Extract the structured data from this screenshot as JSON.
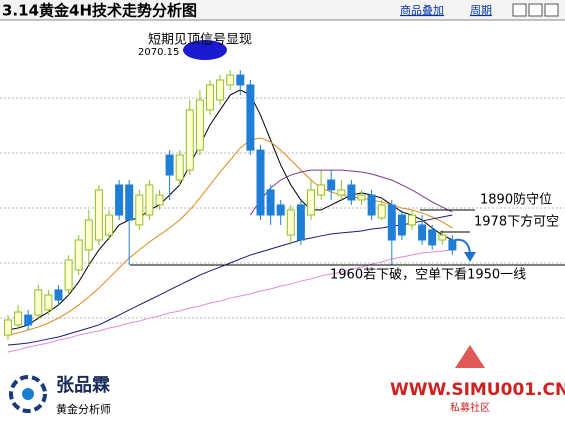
{
  "header": {
    "title": "3.14黄金4H技术走势分析图",
    "buttons": [
      "商品叠加",
      "周期"
    ]
  },
  "chart_data": {
    "type": "candlestick",
    "ylim": [
      1906.3,
      2098.4
    ],
    "up_color": "#8fbf2a",
    "up_fill": "#ffffd0",
    "down_color": "#1f7fd6",
    "open": [
      1920.4,
      1926.1,
      1931.7,
      1931.7,
      1934.6,
      1945.9,
      1945.9,
      1957.2,
      1968.5,
      1974.1,
      1976.9,
      2005.2,
      2005.2,
      1982.6,
      1988.2,
      1993.9,
      2022.1,
      2008.0,
      2013.6,
      2024.9,
      2047.6,
      2053.2,
      2061.7,
      2067.3,
      2061.7,
      2024.9,
      2002.4,
      1993.9,
      1976.9,
      1993.9,
      1988.2,
      1999.5,
      2008.0,
      1999.5,
      2005.2,
      1996.7,
      1999.5,
      1986.5,
      1993.9,
      1988.2,
      1982.6,
      1982.6,
      1979.8,
      1974.1,
      1974.1
    ],
    "high": [
      1931.7,
      1937.4,
      1934.6,
      1948.7,
      1945.9,
      1948.7,
      1965.6,
      1976.9,
      1991.1,
      2005.2,
      1991.1,
      2008.0,
      2008.0,
      2002.4,
      2008.0,
      2002.4,
      2024.9,
      2024.9,
      2053.2,
      2058.9,
      2064.5,
      2067.3,
      2070.15,
      2070.1,
      2064.5,
      2027.8,
      2005.2,
      1996.7,
      1993.9,
      1996.7,
      2008.0,
      2013.6,
      2013.6,
      2008.0,
      2008.0,
      2002.4,
      2002.4,
      1996.7,
      1996.7,
      1991.1,
      1991.1,
      1988.2,
      1982.6,
      1979.8,
      1976.9
    ],
    "low": [
      1917.6,
      1923.3,
      1923.3,
      1928.9,
      1931.7,
      1937.4,
      1943.0,
      1954.3,
      1960.0,
      1971.3,
      1974.1,
      1985.4,
      1960.0,
      1979.8,
      1985.4,
      1991.1,
      1996.7,
      2005.2,
      2010.8,
      2022.1,
      2044.7,
      2050.4,
      2058.9,
      2056.0,
      2022.1,
      1985.4,
      1982.6,
      1982.6,
      1971.3,
      1971.3,
      1985.4,
      1996.7,
      1996.7,
      1996.7,
      1993.9,
      1993.9,
      1985.4,
      1985.4,
      1960.0,
      1974.1,
      1979.8,
      1971.3,
      1968.5,
      1971.3,
      1965.6
    ],
    "close": [
      1928.9,
      1933.4,
      1926.1,
      1945.9,
      1943.0,
      1940.2,
      1962.8,
      1974.1,
      1985.4,
      2002.4,
      1988.2,
      1988.2,
      1985.4,
      1999.5,
      2005.2,
      1999.5,
      2010.8,
      2022.1,
      2047.6,
      2053.2,
      2061.7,
      2064.5,
      2067.3,
      2061.7,
      2024.9,
      1988.2,
      1988.2,
      1988.2,
      1991.1,
      1974.1,
      2002.4,
      2005.2,
      2002.4,
      2002.4,
      1996.7,
      1999.5,
      1988.2,
      1993.9,
      1974.1,
      1976.9,
      1988.2,
      1974.1,
      1971.3,
      1976.9,
      1968.5
    ],
    "series": [
      {
        "color": "#000000",
        "values": [
          1923.3,
          1924.4,
          1926.1,
          1930.0,
          1933.4,
          1937.4,
          1943.0,
          1950.4,
          1960.0,
          1968.5,
          1975.2,
          1982.6,
          1985.4,
          1986.5,
          1991.1,
          1993.9,
          1999.5,
          2005.2,
          2016.5,
          2027.8,
          2039.1,
          2047.6,
          2056.0,
          2058.9,
          2056.0,
          2044.7,
          2030.6,
          2016.5,
          2005.2,
          1996.7,
          1991.1,
          1991.1,
          1993.9,
          1996.7,
          1999.5,
          2000.7,
          1999.5,
          1997.8,
          1993.9,
          1989.9,
          1988.2,
          1985.4,
          1980.9,
          1976.9,
          1974.1
        ]
      },
      {
        "color": "#e08a1e",
        "values": [
          1920.4,
          1921.6,
          1923.3,
          1924.9,
          1927.2,
          1930.0,
          1933.4,
          1937.4,
          1941.9,
          1947.0,
          1952.6,
          1958.3,
          1963.9,
          1968.5,
          1973.0,
          1976.9,
          1980.9,
          1985.4,
          1991.1,
          1997.8,
          2005.2,
          2012.5,
          2019.3,
          2026.1,
          2030.6,
          2031.7,
          2029.5,
          2024.9,
          2019.3,
          2013.6,
          2008.0,
          2003.5,
          2001.2,
          1999.5,
          1998.4,
          1997.8,
          1996.7,
          1995.6,
          1993.9,
          1992.2,
          1991.1,
          1989.4,
          1987.1,
          1984.3,
          1980.9
        ]
      },
      {
        "color": "#1a1a80",
        "values": [
          1914.8,
          1915.3,
          1915.9,
          1917.0,
          1918.2,
          1919.3,
          1921.0,
          1922.7,
          1924.4,
          1926.1,
          1928.9,
          1931.7,
          1934.6,
          1937.4,
          1940.2,
          1943.0,
          1945.9,
          1948.7,
          1951.5,
          1954.3,
          1956.6,
          1958.8,
          1961.1,
          1963.4,
          1965.6,
          1967.3,
          1969.0,
          1970.7,
          1972.4,
          1974.1,
          1975.2,
          1976.4,
          1977.5,
          1978.1,
          1978.6,
          1979.2,
          1980.3,
          1980.9,
          1982.0,
          1982.6,
          1983.7,
          1984.8,
          1986.0,
          1987.1,
          1988.2
        ]
      },
      {
        "color": "#7a3a9a",
        "values": [
          null,
          null,
          null,
          null,
          null,
          null,
          null,
          null,
          null,
          null,
          null,
          null,
          null,
          null,
          null,
          null,
          null,
          null,
          null,
          null,
          null,
          null,
          null,
          null,
          1988.2,
          1996.7,
          2003.5,
          2008.0,
          2010.8,
          2012.5,
          2013.6,
          2013.6,
          2013.6,
          2013.6,
          2013.1,
          2012.5,
          2011.4,
          2009.7,
          2008.0,
          2005.2,
          2002.4,
          1999.0,
          1995.6,
          1992.7,
          1989.9
        ]
      },
      {
        "color": "#e58ad8",
        "values": [
          1910.8,
          1912.0,
          1913.6,
          1914.8,
          1915.9,
          1917.6,
          1918.7,
          1920.4,
          1921.6,
          1922.7,
          1924.4,
          1925.5,
          1927.2,
          1928.3,
          1930.0,
          1931.2,
          1932.9,
          1934.0,
          1935.7,
          1936.8,
          1938.5,
          1939.6,
          1941.3,
          1942.5,
          1943.6,
          1945.3,
          1946.4,
          1948.1,
          1949.2,
          1950.9,
          1952.1,
          1953.8,
          1954.9,
          1956.0,
          1957.7,
          1958.8,
          1960.5,
          1961.7,
          1963.4,
          1964.5,
          1965.6,
          1966.8,
          1967.3,
          1967.9,
          1968.5
        ]
      }
    ],
    "annotations": {
      "peak_text": "短期见顶信号显现",
      "peak_value": 2070.15,
      "level_1": "1890防守位",
      "level_2": "1978下方可空",
      "level_3": "1960若下破，空单下看1950一线"
    }
  },
  "logo": {
    "name": "张品霖",
    "subtitle": "黄金分析师"
  },
  "watermark": {
    "site": "WWW.SIMU001.CN",
    "label": "私募社区"
  }
}
